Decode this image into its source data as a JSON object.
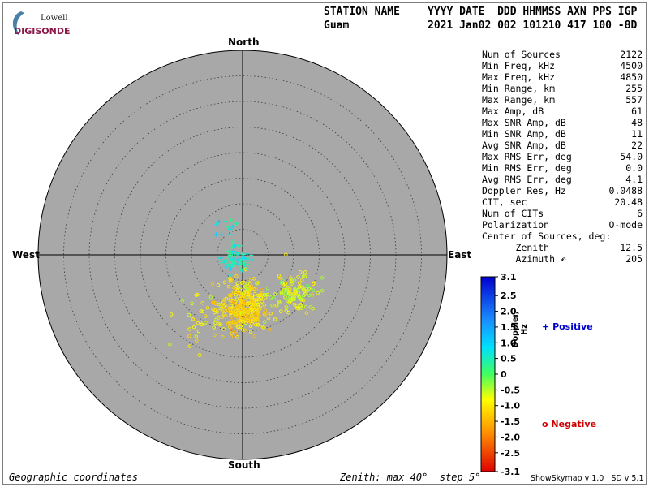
{
  "logo": {
    "line1": "Lowell",
    "line2": "DIGISONDE"
  },
  "header": {
    "station_label": "STATION NAME",
    "station_value": "Guam",
    "cols_label": "YYYY DATE  DDD HHMMSS AXN PPS IGP",
    "cols_value": "2021 Jan02 002 101210 417 100 -8D"
  },
  "directions": {
    "north": "North",
    "south": "South",
    "east": "East",
    "west": "West"
  },
  "stats": [
    {
      "label": "Num of Sources",
      "value": "2122"
    },
    {
      "label": "Min Freq, kHz",
      "value": "4500"
    },
    {
      "label": "Max Freq, kHz",
      "value": "4850"
    },
    {
      "label": "Min Range, km",
      "value": "255"
    },
    {
      "label": "Max Range, km",
      "value": "557"
    },
    {
      "label": "Max Amp, dB",
      "value": "61"
    },
    {
      "label": "Max SNR Amp, dB",
      "value": "48"
    },
    {
      "label": "Min SNR Amp, dB",
      "value": "11"
    },
    {
      "label": "Avg SNR Amp, dB",
      "value": "22"
    },
    {
      "label": "Max RMS Err, deg",
      "value": "54.0"
    },
    {
      "label": "Min RMS Err, deg",
      "value": "0.0"
    },
    {
      "label": "Avg RMS Err, deg",
      "value": "4.1"
    },
    {
      "label": "Doppler Res, Hz",
      "value": "0.0488"
    },
    {
      "label": "CIT, sec",
      "value": "20.48"
    },
    {
      "label": "Num of CITs",
      "value": "6"
    },
    {
      "label": "Polarization",
      "value": "O-mode"
    },
    {
      "label": "Center of Sources, deg:",
      "value": ""
    },
    {
      "label": "      Zenith",
      "value": "12.5"
    },
    {
      "label": "      Azimuth ↶",
      "value": "205"
    }
  ],
  "colorbar": {
    "ticks": [
      "3.1",
      "2.5",
      "2.0",
      "1.5",
      "1.0",
      "0.5",
      "0",
      "-0.5",
      "-1.0",
      "-1.5",
      "-2.0",
      "-2.5",
      "-3.1"
    ],
    "axis_label": "Doppler, Hz"
  },
  "legend": {
    "positive_symbol": "+",
    "positive": "Positive",
    "negative_symbol": "o",
    "negative": "Negative"
  },
  "footer": {
    "left": "Geographic coordinates",
    "middle": "Zenith: max 40°  step 5°",
    "right": "ShowSkymap v 1.0   SD v 5.1"
  },
  "colors": {
    "plot_bg": "#a8a8a8",
    "positive": "#0000cc",
    "negative": "#cc0000",
    "logo": "#8b1a4a"
  },
  "chart_data": {
    "type": "scatter",
    "projection": "polar skymap, zenith angle vs azimuth",
    "zenith_max_deg": 40,
    "zenith_step_deg": 5,
    "coordinates": "Geographic",
    "center_of_sources": {
      "zenith_deg": 12.5,
      "azimuth_deg": 205
    },
    "doppler_range_hz": [
      -3.1,
      3.1
    ],
    "num_sources": 2122,
    "clusters": [
      {
        "polarity": "positive",
        "symbol": "+",
        "doppler_hz": 0.55,
        "zenith_deg": 1.6,
        "azimuth_deg": 240,
        "spread_deg": 1.6,
        "count": 260
      },
      {
        "polarity": "positive",
        "symbol": "+",
        "doppler_hz": 0.7,
        "zenith_deg": 6.0,
        "azimuth_deg": 330,
        "spread_deg": 1.4,
        "count": 55
      },
      {
        "polarity": "negative",
        "symbol": "o",
        "doppler_hz": -1.2,
        "zenith_deg": 11.0,
        "azimuth_deg": 180,
        "spread_deg": 2.6,
        "count": 900
      },
      {
        "polarity": "negative",
        "symbol": "o",
        "doppler_hz": -0.7,
        "zenith_deg": 12.5,
        "azimuth_deg": 128,
        "spread_deg": 2.4,
        "count": 450
      },
      {
        "polarity": "negative",
        "symbol": "o",
        "doppler_hz": -1.0,
        "zenith_deg": 8.0,
        "azimuth_deg": 175,
        "spread_deg": 2.2,
        "count": 300
      },
      {
        "polarity": "negative",
        "symbol": "o",
        "doppler_hz": -1.0,
        "zenith_deg": 15.0,
        "azimuth_deg": 210,
        "spread_deg": 3.5,
        "count": 157
      }
    ]
  }
}
